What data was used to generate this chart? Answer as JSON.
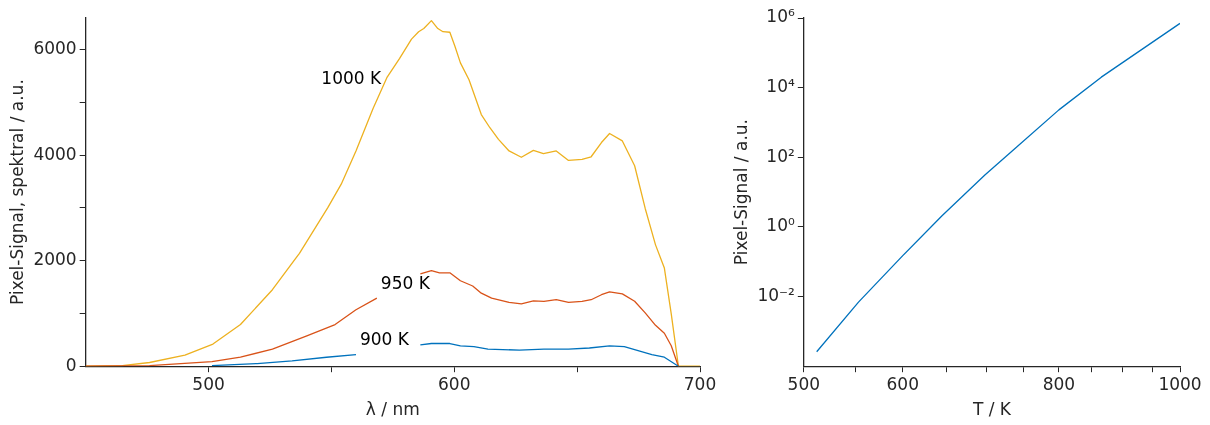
{
  "chart_data": [
    {
      "type": "line",
      "xlabel": "λ / nm",
      "ylabel": "Pixel-Signal, spektral / a.u.",
      "xlim": [
        450,
        700
      ],
      "xticks": [
        500,
        {
          "value": 550,
          "label": null
        },
        600,
        {
          "value": 650,
          "label": null
        },
        700
      ],
      "ylim": [
        0,
        6600
      ],
      "yticks": [
        0,
        {
          "value": 1000,
          "label": null
        },
        2000,
        {
          "value": 3000,
          "label": null
        },
        4000,
        {
          "value": 5000,
          "label": null
        },
        6000
      ],
      "grid": false,
      "legend": false,
      "marker": "none",
      "line_style": "solid",
      "series": [
        {
          "name": "900 K",
          "color": "#0072bd",
          "x": [
            501.4,
            519.8,
            534,
            548,
            560,
            573,
            586.2,
            590.7,
            598.2,
            602.5,
            608,
            613.7,
            626.5,
            636.5,
            646.5,
            655,
            663.2,
            669.2,
            674.8,
            680.4,
            685.5,
            691.2
          ],
          "values": [
            10,
            50,
            100,
            170,
            220,
            null,
            405,
            430,
            430,
            385,
            370,
            325,
            305,
            325,
            325,
            345,
            385,
            370,
            295,
            220,
            170,
            0
          ]
        },
        {
          "name": "950 K",
          "color": "#d95319",
          "x": [
            450,
            476,
            501.4,
            513,
            526,
            540,
            551.5,
            560,
            568.5,
            577,
            586.2,
            590.7,
            594,
            598.2,
            602.5,
            607.5,
            611,
            615.2,
            622.3,
            627.3,
            632.2,
            636.5,
            641.5,
            646.5,
            652,
            655.7,
            659.9,
            663.2,
            668.4,
            673.4,
            677.7,
            681.9,
            685.5,
            688.3,
            691.2
          ],
          "values": [
            0,
            10,
            88,
            170,
            325,
            575,
            790,
            1070,
            1290,
            null,
            1750,
            1810,
            1770,
            1770,
            1620,
            1520,
            1385,
            1290,
            1210,
            1180,
            1240,
            1230,
            1260,
            1210,
            1230,
            1260,
            1355,
            1410,
            1370,
            1230,
            1010,
            775,
            625,
            387,
            0
          ]
        },
        {
          "name": "1000 K",
          "color": "#edb120",
          "x": [
            450,
            464.9,
            476,
            490.4,
            501.8,
            513,
            526,
            537,
            548.6,
            554,
            560,
            567,
            572.7,
            577.7,
            582.6,
            585.5,
            587.6,
            590.7,
            593.3,
            595.4,
            598.2,
            600.3,
            602.5,
            606,
            611,
            614.5,
            618,
            622.3,
            627.3,
            632.2,
            636.3,
            641.5,
            646.5,
            652,
            655.7,
            659.9,
            663.2,
            668.4,
            673.4,
            677.7,
            681.9,
            685.5,
            688.3,
            691.2,
            700
          ],
          "values": [
            0,
            10,
            70,
            210,
            420,
            790,
            1450,
            2140,
            3010,
            3450,
            4080,
            4890,
            5480,
            5830,
            6200,
            6340,
            6400,
            6550,
            6400,
            6340,
            6330,
            6060,
            5750,
            5430,
            4770,
            4520,
            4300,
            4080,
            3960,
            4090,
            4030,
            4080,
            3900,
            3920,
            3970,
            4240,
            4410,
            4270,
            3800,
            2990,
            2300,
            1860,
            990,
            0,
            0
          ]
        }
      ]
    },
    {
      "type": "line",
      "xlabel": "T / K",
      "ylabel": "Pixel-Signal / a.u.",
      "log": "xy",
      "xlim": [
        500,
        1000
      ],
      "xticks": [
        500,
        {
          "value": 550,
          "label": null
        },
        600,
        {
          "value": 650,
          "label": null
        },
        {
          "value": 700,
          "label": null
        },
        {
          "value": 750,
          "label": null
        },
        800,
        {
          "value": 850,
          "label": null
        },
        {
          "value": 900,
          "label": null
        },
        {
          "value": 950,
          "label": null
        },
        1000
      ],
      "ylim": [
        0.0001,
        1000000
      ],
      "yticks": [
        {
          "value": 0.01,
          "label": "10⁻²"
        },
        {
          "value": 1,
          "label": "10⁰"
        },
        {
          "value": 100,
          "label": "10²"
        },
        {
          "value": 10000,
          "label": "10⁴"
        },
        {
          "value": 1000000,
          "label": "10⁶"
        }
      ],
      "grid": false,
      "legend": false,
      "marker": "none",
      "line_style": "solid",
      "series": [
        {
          "color": "#0072bd",
          "x": [
            512,
            553,
            600,
            645,
            698,
            800,
            865,
            1000
          ],
          "values": [
            0.00026,
            0.0069,
            0.15,
            2.1,
            31,
            2300,
            20000,
            700000
          ]
        }
      ]
    }
  ]
}
